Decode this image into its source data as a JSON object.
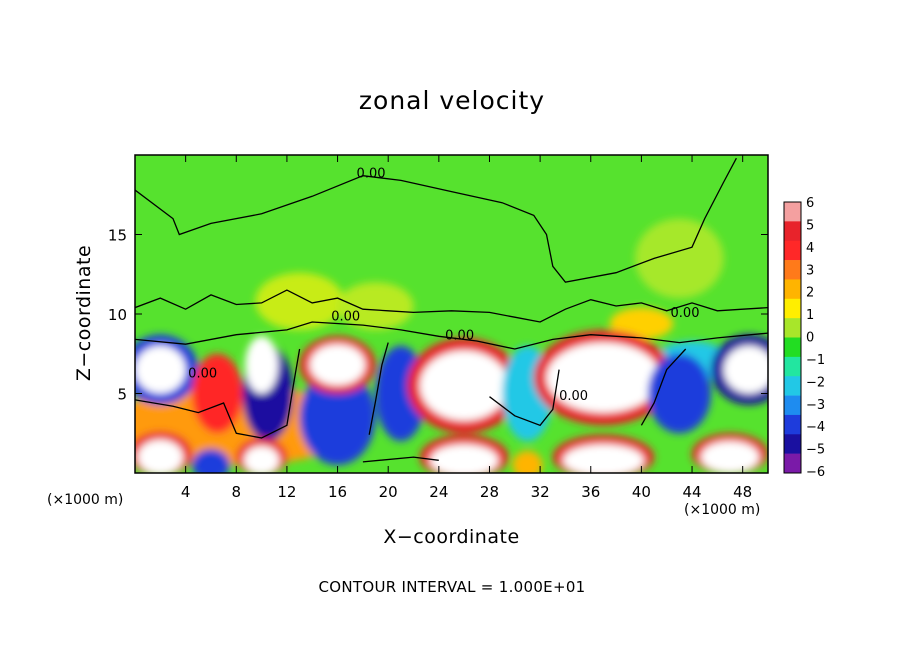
{
  "chart_data": {
    "type": "heatmap",
    "title": "zonal velocity",
    "xlabel": "X−coordinate",
    "ylabel": "Z−coordinate",
    "x_unit_label": "(×1000 m)",
    "x_unit_label_right": "(×1000 m)",
    "footnote": "CONTOUR INTERVAL = 1.000E+01",
    "xlim": [
      0,
      50
    ],
    "ylim": [
      0,
      20
    ],
    "x_ticks": [
      4,
      8,
      12,
      16,
      20,
      24,
      28,
      32,
      36,
      40,
      44,
      48
    ],
    "y_ticks": [
      5,
      10,
      15
    ],
    "contour_labels": [
      {
        "text": "0.00",
        "x": 17.5,
        "y": 18.6
      },
      {
        "text": "0.00",
        "x": 15.5,
        "y": 9.6
      },
      {
        "text": "0.00",
        "x": 24.5,
        "y": 8.4
      },
      {
        "text": "0.00",
        "x": 4.2,
        "y": 6.0
      },
      {
        "text": "0.00",
        "x": 33.5,
        "y": 4.6
      },
      {
        "text": "0.00",
        "x": 42.3,
        "y": 9.8
      }
    ],
    "colorbar": {
      "levels": [
        6,
        5,
        4,
        3,
        2,
        1,
        0,
        -1,
        -2,
        -3,
        -4,
        -5,
        -6
      ],
      "colors": [
        "#f4a0a0",
        "#e8232b",
        "#ff2828",
        "#ff7a1a",
        "#ffb400",
        "#ffee00",
        "#a8e62a",
        "#22dd22",
        "#22e6a0",
        "#22c8e6",
        "#1e8cf0",
        "#1e3cdc",
        "#1a10a0",
        "#7a1aa8"
      ]
    },
    "field": {
      "background": "#56e22e",
      "features": [
        {
          "x": 13,
          "y": 10.8,
          "rx": 3.5,
          "ry": 1.8,
          "color": "#c8ec18"
        },
        {
          "x": 19,
          "y": 10.5,
          "rx": 3.0,
          "ry": 1.5,
          "color": "#b8ea20"
        },
        {
          "x": 43,
          "y": 13.5,
          "rx": 3.5,
          "ry": 2.5,
          "color": "#a6e82a"
        },
        {
          "x": 40,
          "y": 9.4,
          "rx": 2.5,
          "ry": 1.0,
          "color": "#ffd000"
        },
        {
          "x": 44,
          "y": 7.0,
          "rx": 3.0,
          "ry": 1.3,
          "color": "#22c8e6"
        },
        {
          "x": 8,
          "y": 3.0,
          "rx": 10.0,
          "ry": 2.5,
          "color": "#ff9a10"
        },
        {
          "x": 2,
          "y": 6.5,
          "rx": 3.0,
          "ry": 2.2,
          "color": "#1e3cdc"
        },
        {
          "x": 2,
          "y": 6.5,
          "rx": 2.0,
          "ry": 1.5,
          "color": "#ffffff"
        },
        {
          "x": 6.5,
          "y": 5.0,
          "rx": 2.0,
          "ry": 2.5,
          "color": "#ff2828"
        },
        {
          "x": 10.5,
          "y": 5.0,
          "rx": 2.0,
          "ry": 3.0,
          "color": "#1a10a0"
        },
        {
          "x": 10,
          "y": 6.8,
          "rx": 1.3,
          "ry": 1.8,
          "color": "#ffffff"
        },
        {
          "x": 16,
          "y": 3.5,
          "rx": 3.0,
          "ry": 3.0,
          "color": "#1e3cdc"
        },
        {
          "x": 16,
          "y": 6.8,
          "rx": 3.0,
          "ry": 1.8,
          "color": "#e8232b"
        },
        {
          "x": 16,
          "y": 6.8,
          "rx": 2.2,
          "ry": 1.3,
          "color": "#ffffff"
        },
        {
          "x": 21,
          "y": 5.0,
          "rx": 2.0,
          "ry": 3.0,
          "color": "#1e3cdc"
        },
        {
          "x": 26,
          "y": 5.5,
          "rx": 4.5,
          "ry": 3.0,
          "color": "#e8232b"
        },
        {
          "x": 26,
          "y": 5.5,
          "rx": 3.5,
          "ry": 2.2,
          "color": "#ffffff"
        },
        {
          "x": 31,
          "y": 5.0,
          "rx": 2.0,
          "ry": 3.0,
          "color": "#22c8e6"
        },
        {
          "x": 37,
          "y": 6.0,
          "rx": 5.5,
          "ry": 3.0,
          "color": "#e8232b"
        },
        {
          "x": 37,
          "y": 6.0,
          "rx": 4.5,
          "ry": 2.2,
          "color": "#ffffff"
        },
        {
          "x": 43,
          "y": 5.0,
          "rx": 2.5,
          "ry": 2.5,
          "color": "#1e3cdc"
        },
        {
          "x": 48.5,
          "y": 6.5,
          "rx": 3.0,
          "ry": 2.2,
          "color": "#1a10a0"
        },
        {
          "x": 48.5,
          "y": 6.5,
          "rx": 2.0,
          "ry": 1.5,
          "color": "#ffffff"
        },
        {
          "x": 2,
          "y": 1.2,
          "rx": 2.5,
          "ry": 1.4,
          "color": "#e8232b"
        },
        {
          "x": 2,
          "y": 1.0,
          "rx": 1.8,
          "ry": 1.1,
          "color": "#ffffff"
        },
        {
          "x": 6,
          "y": 0.5,
          "rx": 1.5,
          "ry": 1.0,
          "color": "#1e3cdc"
        },
        {
          "x": 10,
          "y": 1.0,
          "rx": 2.0,
          "ry": 1.2,
          "color": "#e8232b"
        },
        {
          "x": 10,
          "y": 0.8,
          "rx": 1.4,
          "ry": 0.9,
          "color": "#ffffff"
        },
        {
          "x": 26,
          "y": 1.0,
          "rx": 3.5,
          "ry": 1.4,
          "color": "#e8232b"
        },
        {
          "x": 26,
          "y": 0.8,
          "rx": 2.7,
          "ry": 1.0,
          "color": "#ffffff"
        },
        {
          "x": 31,
          "y": 0.5,
          "rx": 1.2,
          "ry": 0.9,
          "color": "#ffb400"
        },
        {
          "x": 37,
          "y": 1.0,
          "rx": 4.0,
          "ry": 1.4,
          "color": "#e8232b"
        },
        {
          "x": 37,
          "y": 0.8,
          "rx": 3.2,
          "ry": 1.0,
          "color": "#ffffff"
        },
        {
          "x": 47,
          "y": 1.2,
          "rx": 3.0,
          "ry": 1.3,
          "color": "#e8232b"
        },
        {
          "x": 47,
          "y": 1.0,
          "rx": 2.3,
          "ry": 1.0,
          "color": "#ffffff"
        }
      ],
      "contours": [
        [
          [
            0,
            17.8
          ],
          [
            3,
            16
          ],
          [
            3.5,
            15
          ],
          [
            6,
            15.7
          ],
          [
            10,
            16.3
          ],
          [
            14,
            17.4
          ],
          [
            18,
            18.7
          ],
          [
            21,
            18.4
          ],
          [
            25,
            17.7
          ],
          [
            29,
            17
          ],
          [
            31.5,
            16.2
          ],
          [
            32.5,
            15
          ],
          [
            33,
            13
          ],
          [
            34,
            12
          ],
          [
            38,
            12.6
          ],
          [
            41,
            13.5
          ],
          [
            44,
            14.2
          ],
          [
            45,
            16
          ],
          [
            46.5,
            18.3
          ],
          [
            47.5,
            19.8
          ]
        ],
        [
          [
            0,
            10.4
          ],
          [
            2,
            11
          ],
          [
            4,
            10.3
          ],
          [
            6,
            11.2
          ],
          [
            8,
            10.6
          ],
          [
            10,
            10.7
          ],
          [
            12,
            11.5
          ],
          [
            14,
            10.7
          ],
          [
            16,
            11
          ],
          [
            18,
            10.3
          ],
          [
            20,
            10.2
          ],
          [
            22,
            10.1
          ],
          [
            25,
            10.2
          ],
          [
            28,
            10.1
          ],
          [
            30,
            9.8
          ],
          [
            32,
            9.5
          ],
          [
            34,
            10.3
          ],
          [
            36,
            10.9
          ],
          [
            38,
            10.5
          ],
          [
            40,
            10.7
          ],
          [
            42,
            10.2
          ],
          [
            44,
            10.7
          ],
          [
            46,
            10.2
          ],
          [
            48,
            10.3
          ],
          [
            50,
            10.4
          ]
        ],
        [
          [
            0,
            8.4
          ],
          [
            4,
            8.1
          ],
          [
            8,
            8.7
          ],
          [
            12,
            9.0
          ],
          [
            14,
            9.5
          ],
          [
            18,
            9.3
          ],
          [
            21,
            9.0
          ],
          [
            24,
            8.6
          ],
          [
            27,
            8.3
          ],
          [
            30,
            7.8
          ],
          [
            33,
            8.4
          ],
          [
            36,
            8.7
          ],
          [
            40,
            8.5
          ],
          [
            43,
            8.2
          ],
          [
            46,
            8.5
          ],
          [
            50,
            8.8
          ]
        ],
        [
          [
            0,
            4.6
          ],
          [
            3,
            4.2
          ],
          [
            5,
            3.8
          ],
          [
            7,
            4.4
          ],
          [
            8,
            2.5
          ],
          [
            10,
            2.2
          ],
          [
            12,
            3.0
          ],
          [
            12.5,
            5.5
          ],
          [
            13,
            7.8
          ]
        ],
        [
          [
            18.5,
            2.4
          ],
          [
            19,
            4.5
          ],
          [
            19.5,
            6.8
          ],
          [
            20,
            8.2
          ]
        ],
        [
          [
            28,
            4.8
          ],
          [
            30,
            3.6
          ],
          [
            32,
            3.0
          ],
          [
            33,
            4.0
          ],
          [
            33.5,
            6.5
          ]
        ],
        [
          [
            40,
            3.0
          ],
          [
            41,
            4.4
          ],
          [
            42,
            6.5
          ],
          [
            43.5,
            7.8
          ]
        ],
        [
          [
            18,
            0.7
          ],
          [
            22,
            1.0
          ],
          [
            24,
            0.8
          ]
        ]
      ]
    }
  }
}
